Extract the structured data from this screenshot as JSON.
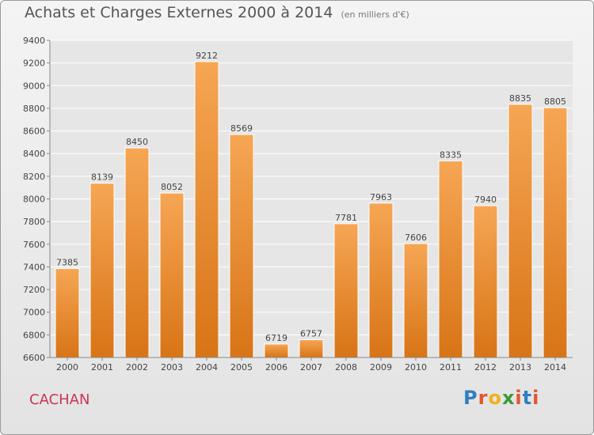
{
  "header": {
    "title": "Achats et Charges Externes 2000 à 2014",
    "subtitle": "(en milliers d'€)"
  },
  "footer": {
    "city": "CACHAN",
    "logo_letters": [
      "P",
      "r",
      "o",
      "x",
      "i",
      "t",
      "i"
    ]
  },
  "colors": {
    "bar_top": "#f6a654",
    "bar_bottom": "#d87416",
    "city": "#c8365a",
    "logo_letters": [
      "#2f7fc1",
      "#e4552c",
      "#f0b21b",
      "#3b9a3a",
      "#e4552c",
      "#2f7fc1",
      "#e4552c"
    ]
  },
  "chart_data": {
    "type": "bar",
    "title": "Achats et Charges Externes 2000 à 2014",
    "subtitle": "(en milliers d'€)",
    "categories": [
      "2000",
      "2001",
      "2002",
      "2003",
      "2004",
      "2005",
      "2006",
      "2007",
      "2008",
      "2009",
      "2010",
      "2011",
      "2012",
      "2013",
      "2014"
    ],
    "values": [
      7385,
      8139,
      8450,
      8052,
      9212,
      8569,
      6719,
      6757,
      7781,
      7963,
      7606,
      8335,
      7940,
      8835,
      8805
    ],
    "ylim": [
      6600,
      9400
    ],
    "yticks": [
      6600,
      6800,
      7000,
      7200,
      7400,
      7600,
      7800,
      8000,
      8200,
      8400,
      8600,
      8800,
      9000,
      9200,
      9400
    ],
    "grid": true,
    "legend": "none"
  }
}
